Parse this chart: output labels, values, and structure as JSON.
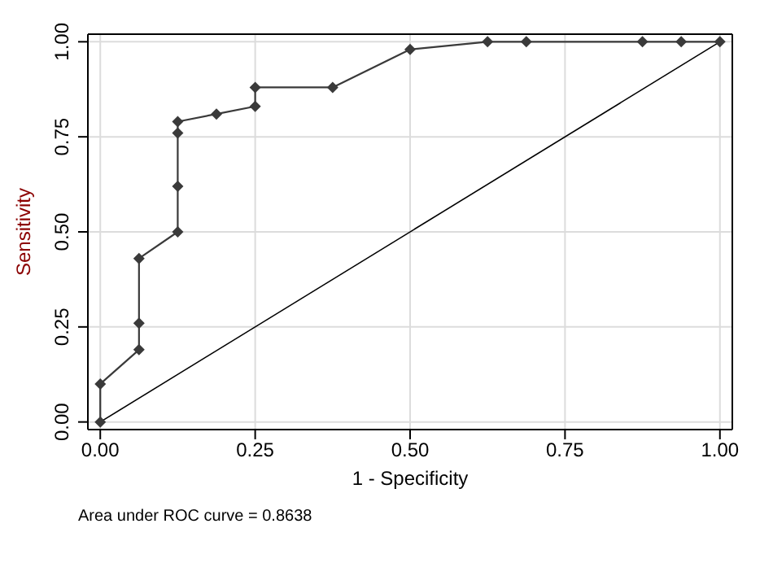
{
  "chart_data": {
    "type": "line",
    "xlabel": "1 - Specificity",
    "ylabel": "Sensitivity",
    "annotations": [
      "Area under ROC curve = 0.8638"
    ],
    "xlim": [
      -0.02,
      1.02
    ],
    "ylim": [
      -0.02,
      1.02
    ],
    "xticks": [
      {
        "value": 0,
        "label": "0.00"
      },
      {
        "value": 0.25,
        "label": "0.25"
      },
      {
        "value": 0.5,
        "label": "0.50"
      },
      {
        "value": 0.75,
        "label": "0.75"
      },
      {
        "value": 1,
        "label": "1.00"
      }
    ],
    "yticks": [
      {
        "value": 0,
        "label": "0.00"
      },
      {
        "value": 0.25,
        "label": "0.25"
      },
      {
        "value": 0.5,
        "label": "0.50"
      },
      {
        "value": 0.75,
        "label": "0.75"
      },
      {
        "value": 1,
        "label": "1.00"
      }
    ],
    "grid": true,
    "series": [
      {
        "color": "#3a3a3a",
        "marker": "diamond",
        "x": [
          0,
          0,
          0.0625,
          0.0625,
          0.0625,
          0.125,
          0.125,
          0.125,
          0.125,
          0.1875,
          0.25,
          0.25,
          0.375,
          0.5,
          0.625,
          0.6875,
          0.875,
          0.9375,
          1
        ],
        "values": [
          0,
          0.1,
          0.19,
          0.26,
          0.43,
          0.5,
          0.62,
          0.76,
          0.79,
          0.81,
          0.83,
          0.88,
          0.88,
          0.98,
          1,
          1,
          1,
          1,
          1
        ]
      },
      {
        "color": "#000000",
        "marker": "none",
        "x": [
          0,
          1
        ],
        "values": [
          0,
          1
        ]
      }
    ]
  }
}
